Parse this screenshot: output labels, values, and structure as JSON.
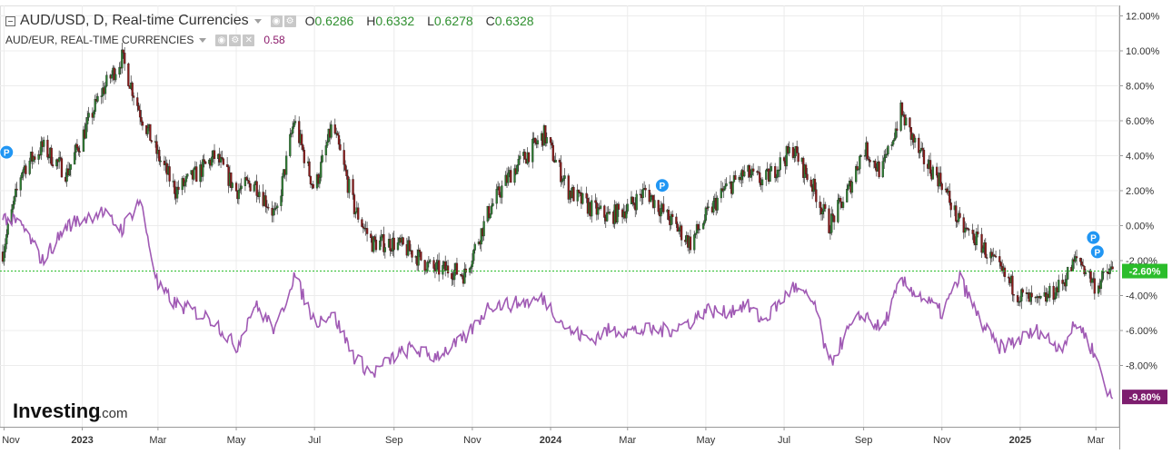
{
  "header": {
    "main_title": "AUD/USD, D, Real-time Currencies",
    "compare_title": "AUD/EUR, REAL-TIME CURRENCIES",
    "compare_value": "0.58",
    "ohlc": {
      "o_label": "O",
      "o_value": "0.6286",
      "h_label": "H",
      "h_value": "0.6332",
      "l_label": "L",
      "l_value": "0.6278",
      "c_label": "C",
      "c_value": "0.6328"
    },
    "logo_text": "Investing",
    "logo_suffix": ".com"
  },
  "colors": {
    "up_candle": "#2e7d32",
    "down_candle": "#8b1a1a",
    "compare_line": "#a05ab4",
    "last_price_tag": "#2bbd2b",
    "compare_tag": "#7d1d6e",
    "event_marker": "#2196f3",
    "grid": "#ececec"
  },
  "chart_data": {
    "type": "line",
    "y_axis": {
      "unit": "%",
      "range": [
        -10.5,
        12.5
      ],
      "ticks": [
        "12.00%",
        "10.00%",
        "8.00%",
        "6.00%",
        "4.00%",
        "2.00%",
        "0.00%",
        "-2.00%",
        "-4.00%",
        "-6.00%",
        "-8.00%"
      ],
      "tick_values": [
        12,
        10,
        8,
        6,
        4,
        2,
        0,
        -2,
        -4,
        -6,
        -8
      ],
      "grid": true
    },
    "x_axis": {
      "ticks": [
        "Nov",
        "2023",
        "Mar",
        "May",
        "Jul",
        "Sep",
        "Nov",
        "2024",
        "Mar",
        "May",
        "Jul",
        "Sep",
        "Nov",
        "2025",
        "Mar"
      ],
      "tick_dates": [
        "2022-11-01",
        "2023-01-01",
        "2023-03-01",
        "2023-05-01",
        "2023-07-01",
        "2023-09-01",
        "2023-11-01",
        "2024-01-01",
        "2024-03-01",
        "2024-05-01",
        "2024-07-01",
        "2024-09-01",
        "2024-11-01",
        "2025-01-01",
        "2025-03-01"
      ],
      "bold_ticks": [
        "2023",
        "2024",
        "2025"
      ],
      "range": [
        "2022-10-31",
        "2025-03-15"
      ]
    },
    "series": [
      {
        "name": "AUD/USD",
        "style": "candlestick",
        "dates": [
          "2022-10-31",
          "2022-11-15",
          "2022-12-01",
          "2022-12-20",
          "2023-01-15",
          "2023-02-01",
          "2023-02-15",
          "2023-03-01",
          "2023-03-15",
          "2023-04-01",
          "2023-04-15",
          "2023-05-01",
          "2023-05-15",
          "2023-06-01",
          "2023-06-15",
          "2023-07-01",
          "2023-07-15",
          "2023-08-01",
          "2023-08-15",
          "2023-09-01",
          "2023-09-15",
          "2023-10-01",
          "2023-10-15",
          "2023-10-26",
          "2023-11-15",
          "2023-12-01",
          "2023-12-27",
          "2024-01-15",
          "2024-02-01",
          "2024-02-15",
          "2024-03-01",
          "2024-03-15",
          "2024-04-01",
          "2024-04-19",
          "2024-05-01",
          "2024-05-15",
          "2024-06-01",
          "2024-06-15",
          "2024-07-08",
          "2024-07-25",
          "2024-08-05",
          "2024-08-20",
          "2024-09-01",
          "2024-09-15",
          "2024-09-30",
          "2024-10-15",
          "2024-11-01",
          "2024-11-15",
          "2024-12-01",
          "2024-12-15",
          "2025-01-01",
          "2025-01-15",
          "2025-02-01",
          "2025-02-15",
          "2025-03-01",
          "2025-03-12"
        ],
        "values": [
          -1.5,
          3.2,
          4.5,
          3.0,
          7.5,
          9.6,
          6.5,
          4.0,
          2.0,
          3.0,
          4.0,
          2.0,
          2.5,
          0.5,
          6.0,
          2.0,
          5.8,
          1.0,
          -1.0,
          -1.0,
          -1.5,
          -2.5,
          -2.5,
          -2.8,
          1.0,
          3.0,
          5.2,
          2.0,
          1.0,
          0.5,
          1.0,
          2.0,
          0.5,
          -1.0,
          0.5,
          2.0,
          3.0,
          2.5,
          4.4,
          2.0,
          0.0,
          2.0,
          4.5,
          3.0,
          6.5,
          4.0,
          2.5,
          0.0,
          -1.0,
          -2.5,
          -4.0,
          -4.5,
          -3.5,
          -1.8,
          -3.5,
          -2.6
        ]
      },
      {
        "name": "AUD/EUR",
        "style": "line",
        "dates": [
          "2022-10-31",
          "2022-11-15",
          "2022-12-01",
          "2022-12-20",
          "2023-01-15",
          "2023-02-01",
          "2023-02-15",
          "2023-03-01",
          "2023-03-15",
          "2023-04-01",
          "2023-04-15",
          "2023-05-01",
          "2023-05-15",
          "2023-06-01",
          "2023-06-15",
          "2023-07-01",
          "2023-07-15",
          "2023-08-01",
          "2023-08-15",
          "2023-09-01",
          "2023-09-15",
          "2023-10-01",
          "2023-10-15",
          "2023-10-26",
          "2023-11-15",
          "2023-12-01",
          "2023-12-27",
          "2024-01-15",
          "2024-02-01",
          "2024-02-15",
          "2024-03-01",
          "2024-03-15",
          "2024-04-01",
          "2024-04-19",
          "2024-05-01",
          "2024-05-15",
          "2024-06-01",
          "2024-06-15",
          "2024-07-08",
          "2024-07-25",
          "2024-08-05",
          "2024-08-20",
          "2024-09-01",
          "2024-09-15",
          "2024-09-30",
          "2024-10-15",
          "2024-11-01",
          "2024-11-15",
          "2024-12-01",
          "2024-12-15",
          "2025-01-01",
          "2025-01-15",
          "2025-02-01",
          "2025-02-15",
          "2025-03-01",
          "2025-03-12"
        ],
        "values": [
          0.5,
          0.0,
          -2.0,
          0.0,
          0.8,
          -0.2,
          1.5,
          -3.5,
          -4.5,
          -5.0,
          -5.5,
          -7.0,
          -4.5,
          -6.0,
          -2.8,
          -5.5,
          -5.0,
          -7.5,
          -8.5,
          -7.5,
          -7.0,
          -7.5,
          -7.0,
          -6.5,
          -4.5,
          -4.5,
          -4.2,
          -6.0,
          -6.5,
          -6.0,
          -6.0,
          -6.0,
          -6.0,
          -5.5,
          -4.8,
          -5.0,
          -4.5,
          -5.5,
          -3.5,
          -4.5,
          -8.0,
          -6.0,
          -5.0,
          -6.0,
          -3.2,
          -4.0,
          -5.0,
          -3.0,
          -5.5,
          -7.0,
          -6.5,
          -6.0,
          -7.0,
          -5.5,
          -7.5,
          -9.8
        ]
      }
    ],
    "last_value_tags": [
      {
        "series": "AUD/USD",
        "label": "-2.60%",
        "value": -2.6
      },
      {
        "series": "AUD/EUR",
        "label": "-9.80%",
        "value": -9.8
      }
    ],
    "event_markers": [
      {
        "label": "P",
        "date": "2022-11-03",
        "value": 4.2
      },
      {
        "label": "P",
        "date": "2024-03-28",
        "value": 2.3
      },
      {
        "label": "P",
        "date": "2025-02-27",
        "value": -1.1
      },
      {
        "label": "P",
        "date": "2025-02-28",
        "value": -1.5
      }
    ],
    "legend": "top-left"
  }
}
